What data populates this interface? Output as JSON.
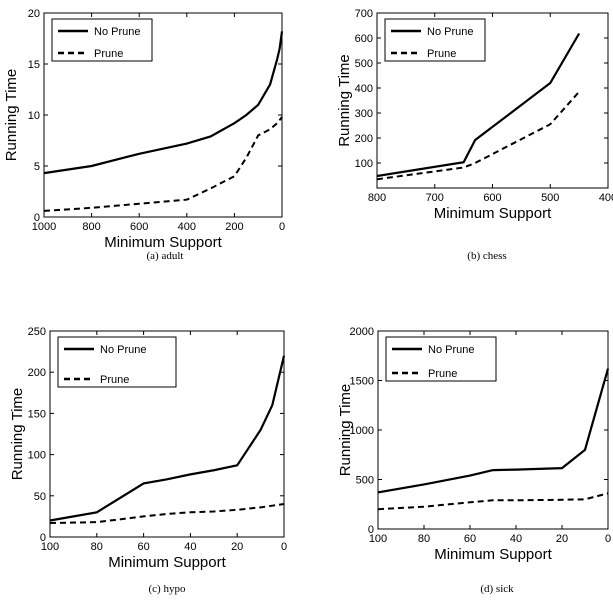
{
  "chart_data": [
    {
      "type": "line",
      "caption": "(a)  adult",
      "xlabel": "Minimum Support",
      "ylabel": "Running Time",
      "xlim": [
        1000,
        0
      ],
      "ylim": [
        0,
        20
      ],
      "xticks": [
        1000,
        800,
        600,
        400,
        200,
        0
      ],
      "yticks": [
        0,
        5,
        10,
        15,
        20
      ],
      "legend": "top-left",
      "series": [
        {
          "name": "No Prune",
          "style": "solid",
          "x": [
            1000,
            800,
            600,
            400,
            300,
            200,
            150,
            100,
            50,
            20,
            10,
            0
          ],
          "y": [
            4.3,
            5.0,
            6.2,
            7.2,
            7.9,
            9.2,
            10.0,
            11.0,
            13.0,
            15.5,
            16.5,
            18.2
          ]
        },
        {
          "name": "Prune",
          "style": "dashed",
          "x": [
            1000,
            800,
            600,
            400,
            300,
            200,
            150,
            100,
            50,
            20,
            0
          ],
          "y": [
            0.6,
            0.9,
            1.3,
            1.7,
            2.8,
            4.0,
            5.8,
            8.0,
            8.6,
            9.2,
            9.8
          ]
        }
      ]
    },
    {
      "type": "line",
      "caption": "(b)  chess",
      "xlabel": "Minimum Support",
      "ylabel": "Running Time",
      "xlim": [
        800,
        400
      ],
      "ylim": [
        0,
        700
      ],
      "xticks": [
        800,
        700,
        600,
        500,
        400
      ],
      "yticks": [
        100,
        200,
        300,
        400,
        500,
        600,
        700
      ],
      "legend": "top-left",
      "series": [
        {
          "name": "No Prune",
          "style": "solid",
          "x": [
            800,
            650,
            630,
            500,
            450
          ],
          "y": [
            48,
            103,
            192,
            420,
            618
          ]
        },
        {
          "name": "Prune",
          "style": "dashed",
          "x": [
            800,
            650,
            630,
            500,
            450
          ],
          "y": [
            35,
            82,
            100,
            255,
            385
          ]
        }
      ]
    },
    {
      "type": "line",
      "caption": "(c)  hypo",
      "xlabel": "Minimum Support",
      "ylabel": "Running Time",
      "xlim": [
        100,
        0
      ],
      "ylim": [
        0,
        250
      ],
      "xticks": [
        100,
        80,
        60,
        40,
        20,
        0
      ],
      "yticks": [
        0,
        50,
        100,
        150,
        200,
        250
      ],
      "legend": "top-left",
      "series": [
        {
          "name": "No Prune",
          "style": "solid",
          "x": [
            100,
            80,
            60,
            50,
            40,
            30,
            20,
            10,
            5,
            0
          ],
          "y": [
            20,
            30,
            65,
            70,
            76,
            81,
            87,
            130,
            160,
            220
          ]
        },
        {
          "name": "Prune",
          "style": "dashed",
          "x": [
            100,
            80,
            60,
            50,
            40,
            30,
            20,
            10,
            5,
            0
          ],
          "y": [
            17,
            18,
            25,
            28,
            30,
            31,
            33,
            36,
            38,
            40
          ]
        }
      ]
    },
    {
      "type": "line",
      "caption": "(d)  sick",
      "xlabel": "Minimum Support",
      "ylabel": "Running Time",
      "xlim": [
        100,
        0
      ],
      "ylim": [
        0,
        2000
      ],
      "xticks": [
        100,
        80,
        60,
        40,
        20,
        0
      ],
      "yticks": [
        0,
        500,
        1000,
        1500,
        2000
      ],
      "legend": "top-left",
      "series": [
        {
          "name": "No Prune",
          "style": "solid",
          "x": [
            100,
            80,
            60,
            50,
            40,
            20,
            10,
            0
          ],
          "y": [
            370,
            450,
            540,
            595,
            600,
            615,
            800,
            1620
          ]
        },
        {
          "name": "Prune",
          "style": "dashed",
          "x": [
            100,
            80,
            60,
            50,
            40,
            20,
            10,
            0
          ],
          "y": [
            200,
            225,
            270,
            290,
            290,
            295,
            300,
            360
          ]
        }
      ]
    }
  ]
}
